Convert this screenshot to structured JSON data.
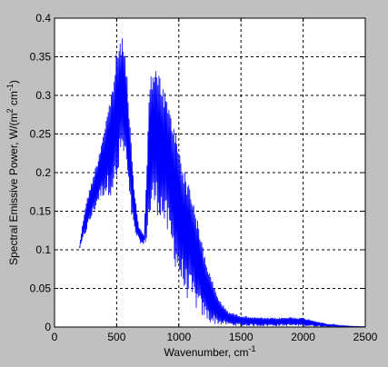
{
  "chart_data": {
    "type": "line",
    "title": "",
    "xlabel": "Wavenumber, cm",
    "xlabel_superscript": "-1",
    "ylabel_parts": [
      "Spectral Emissive Power, W/(m",
      "2",
      " cm",
      "-1",
      ")"
    ],
    "xlim": [
      0,
      2500
    ],
    "ylim": [
      0,
      0.4
    ],
    "x_ticks": [
      "0",
      "500",
      "1000",
      "1500",
      "2000",
      "2500"
    ],
    "y_ticks": [
      "0",
      "0.05",
      "0.1",
      "0.15",
      "0.2",
      "0.25",
      "0.3",
      "0.35",
      "0.4"
    ],
    "grid": true,
    "series": [
      {
        "color": "#0000ff",
        "envelope": {
          "x": [
            200,
            250,
            300,
            350,
            400,
            450,
            480,
            500,
            520,
            540,
            560,
            580,
            600,
            640,
            680,
            720,
            740,
            760,
            780,
            800,
            850,
            900,
            950,
            1000,
            1050,
            1100,
            1150,
            1200,
            1250,
            1300,
            1350,
            1400,
            1500,
            1600,
            1700,
            1800,
            1900,
            2000,
            2100,
            2200,
            2300,
            2400,
            2500
          ],
          "upper": [
            0.105,
            0.16,
            0.19,
            0.22,
            0.26,
            0.3,
            0.33,
            0.36,
            0.37,
            0.375,
            0.37,
            0.34,
            0.28,
            0.18,
            0.13,
            0.12,
            0.2,
            0.3,
            0.335,
            0.34,
            0.325,
            0.3,
            0.27,
            0.24,
            0.2,
            0.18,
            0.14,
            0.1,
            0.07,
            0.045,
            0.03,
            0.02,
            0.015,
            0.013,
            0.012,
            0.012,
            0.013,
            0.012,
            0.008,
            0.004,
            0.002,
            0.001,
            0.0005
          ],
          "lower": [
            0.1,
            0.12,
            0.14,
            0.16,
            0.17,
            0.17,
            0.175,
            0.17,
            0.2,
            0.22,
            0.21,
            0.2,
            0.16,
            0.12,
            0.11,
            0.105,
            0.11,
            0.13,
            0.14,
            0.15,
            0.14,
            0.12,
            0.09,
            0.06,
            0.04,
            0.03,
            0.02,
            0.01,
            0.005,
            0.003,
            0.002,
            0.002,
            0.001,
            0.001,
            0.001,
            0.001,
            0.001,
            0.001,
            0.0005,
            0.0003,
            0.0002,
            0.0001,
            0.0
          ]
        },
        "x_step": 4
      }
    ]
  }
}
